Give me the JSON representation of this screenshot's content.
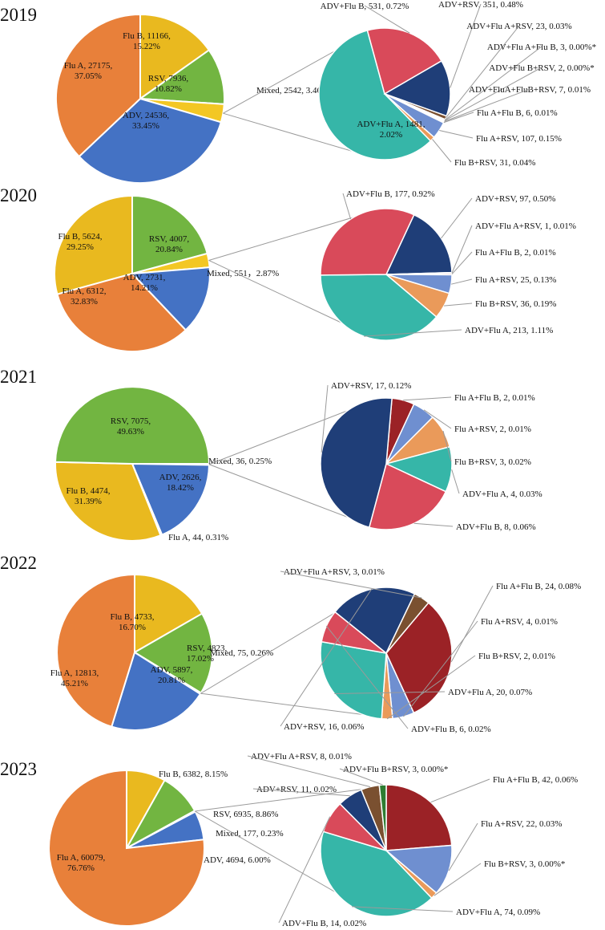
{
  "chart_data": [
    {
      "type": "pie",
      "year": "2019",
      "main": [
        {
          "name": "Flu B",
          "count": "11166",
          "pct": "15.22%",
          "value": 15.22,
          "color": "#e9b91f",
          "label": [
            "Flu B, 11166,",
            "15.22%"
          ]
        },
        {
          "name": "RSV",
          "count": "7936",
          "pct": "10.82%",
          "value": 10.82,
          "color": "#72b541",
          "label": [
            "RSV, 7936,",
            "10.82%"
          ]
        },
        {
          "name": "Mixed",
          "count": "2542",
          "pct": "3.46%",
          "value": 3.46,
          "color": "#f3c724",
          "label": [
            "Mixed, 2542, 3.46%"
          ]
        },
        {
          "name": "ADV",
          "count": "24536",
          "pct": "33.45%",
          "value": 33.45,
          "color": "#4472c4",
          "label": [
            "ADV, 24536,",
            "33.45%"
          ]
        },
        {
          "name": "Flu A",
          "count": "27175",
          "pct": "37.05%",
          "value": 37.05,
          "color": "#e8803a",
          "label": [
            "Flu A, 27175,",
            "37.05%"
          ]
        }
      ],
      "mixed": [
        {
          "name": "ADV+Flu A",
          "value": 1481,
          "color": "#36b6a8",
          "label": [
            "ADV+Flu A, 1481,",
            "2.02%"
          ]
        },
        {
          "name": "ADV+Flu B",
          "value": 531,
          "color": "#d94a5a",
          "label": [
            "ADV+Flu B, 531, 0.72%"
          ]
        },
        {
          "name": "ADV+RSV",
          "value": 351,
          "color": "#1f3e78",
          "label": [
            "ADV+RSV, 351, 0.48%"
          ]
        },
        {
          "name": "ADV+Flu A+RSV",
          "value": 23,
          "color": "#7a5030",
          "label": [
            "ADV+Flu A+RSV, 23, 0.03%"
          ]
        },
        {
          "name": "ADV+Flu A+Flu B",
          "value": 3,
          "color": "#2e7d32",
          "label": [
            "ADV+Flu A+Flu B, 3, 0.00%*"
          ]
        },
        {
          "name": "ADV+Flu B+RSV",
          "value": 2,
          "color": "#a05050",
          "label": [
            "ADV+Flu B+RSV, 2, 0.00%*"
          ]
        },
        {
          "name": "ADV+FluA+FluB+RSV",
          "value": 7,
          "color": "#506080",
          "label": [
            "ADV+FluA+FluB+RSV, 7, 0.01%"
          ]
        },
        {
          "name": "Flu A+Flu B",
          "value": 6,
          "color": "#9b2226",
          "label": [
            "Flu A+Flu B, 6, 0.01%"
          ]
        },
        {
          "name": "Flu A+RSV",
          "value": 107,
          "color": "#6f8fd0",
          "label": [
            "Flu A+RSV, 107, 0.15%"
          ]
        },
        {
          "name": "Flu B+RSV",
          "value": 31,
          "color": "#ea9a5a",
          "label": [
            "Flu B+RSV, 31, 0.04%"
          ]
        }
      ]
    },
    {
      "type": "pie",
      "year": "2020",
      "main": [
        {
          "name": "RSV",
          "count": "4007",
          "pct": "20.84%",
          "value": 20.84,
          "color": "#72b541",
          "label": [
            "RSV, 4007,",
            "20.84%"
          ]
        },
        {
          "name": "Mixed",
          "count": "551",
          "pct": "2.87%",
          "value": 2.87,
          "color": "#f3c724",
          "label": [
            "Mixed, 551，2.87%"
          ]
        },
        {
          "name": "ADV",
          "count": "2731",
          "pct": "14.21%",
          "value": 14.21,
          "color": "#4472c4",
          "label": [
            "ADV, 2731,",
            "14.21%"
          ]
        },
        {
          "name": "Flu A",
          "count": "6312",
          "pct": "32.83%",
          "value": 32.83,
          "color": "#e8803a",
          "label": [
            "Flu A, 6312,",
            "32.83%"
          ]
        },
        {
          "name": "Flu B",
          "count": "5624",
          "pct": "29.25%",
          "value": 29.25,
          "color": "#e9b91f",
          "label": [
            "Flu B, 5624,",
            "29.25%"
          ]
        }
      ],
      "mixed": [
        {
          "name": "ADV+RSV",
          "value": 97,
          "color": "#1f3e78",
          "label": [
            "ADV+RSV, 97, 0.50%"
          ]
        },
        {
          "name": "ADV+Flu A+RSV",
          "value": 1,
          "color": "#7a5030",
          "label": [
            "ADV+Flu A+RSV, 1, 0.01%"
          ]
        },
        {
          "name": "Flu A+Flu B",
          "value": 2,
          "color": "#9b2226",
          "label": [
            "Flu A+Flu B, 2, 0.01%"
          ]
        },
        {
          "name": "Flu A+RSV",
          "value": 25,
          "color": "#6f8fd0",
          "label": [
            "Flu A+RSV, 25, 0.13%"
          ]
        },
        {
          "name": "Flu B+RSV",
          "value": 36,
          "color": "#ea9a5a",
          "label": [
            "Flu B+RSV, 36, 0.19%"
          ]
        },
        {
          "name": "ADV+Flu A",
          "value": 213,
          "color": "#36b6a8",
          "label": [
            "ADV+Flu A, 213, 1.11%"
          ]
        },
        {
          "name": "ADV+Flu B",
          "value": 177,
          "color": "#d94a5a",
          "label": [
            "ADV+Flu B, 177, 0.92%"
          ]
        }
      ]
    },
    {
      "type": "pie",
      "year": "2021",
      "main": [
        {
          "name": "Mixed",
          "count": "36",
          "pct": "0.25%",
          "value": 0.25,
          "color": "#f3c724",
          "label": [
            "Mixed, 36, 0.25%"
          ]
        },
        {
          "name": "ADV",
          "count": "2626",
          "pct": "18.42%",
          "value": 18.42,
          "color": "#4472c4",
          "label": [
            "ADV, 2626,",
            "18.42%"
          ]
        },
        {
          "name": "Flu A",
          "count": "44",
          "pct": "0.31%",
          "value": 0.31,
          "color": "#e8803a",
          "label": [
            "Flu A, 44, 0.31%"
          ]
        },
        {
          "name": "Flu B",
          "count": "4474",
          "pct": "31.39%",
          "value": 31.39,
          "color": "#e9b91f",
          "label": [
            "Flu B, 4474,",
            "31.39%"
          ]
        },
        {
          "name": "RSV",
          "count": "7075",
          "pct": "49.63%",
          "value": 49.63,
          "color": "#72b541",
          "label": [
            "RSV, 7075,",
            "49.63%"
          ]
        }
      ],
      "mixed": [
        {
          "name": "Flu A+Flu B",
          "value": 2,
          "color": "#9b2226",
          "label": [
            "Flu A+Flu B, 2, 0.01%"
          ]
        },
        {
          "name": "Flu A+RSV",
          "value": 2,
          "color": "#6f8fd0",
          "label": [
            "Flu A+RSV, 2, 0.01%"
          ]
        },
        {
          "name": "Flu B+RSV",
          "value": 3,
          "color": "#ea9a5a",
          "label": [
            "Flu B+RSV, 3, 0.02%"
          ]
        },
        {
          "name": "ADV+Flu A",
          "value": 4,
          "color": "#36b6a8",
          "label": [
            "ADV+Flu A, 4, 0.03%"
          ]
        },
        {
          "name": "ADV+Flu B",
          "value": 8,
          "color": "#d94a5a",
          "label": [
            "ADV+Flu B, 8, 0.06%"
          ]
        },
        {
          "name": "ADV+RSV",
          "value": 17,
          "color": "#1f3e78",
          "label": [
            "ADV+RSV, 17, 0.12%"
          ]
        }
      ]
    },
    {
      "type": "pie",
      "year": "2022",
      "main": [
        {
          "name": "Flu B",
          "count": "4733",
          "pct": "16.70%",
          "value": 16.7,
          "color": "#e9b91f",
          "label": [
            "Flu B, 4733,",
            "16.70%"
          ]
        },
        {
          "name": "RSV",
          "count": "4823",
          "pct": "17.02%",
          "value": 17.02,
          "color": "#72b541",
          "label": [
            "RSV, 4823,",
            "17.02%"
          ]
        },
        {
          "name": "Mixed",
          "count": "75",
          "pct": "0.26%",
          "value": 0.26,
          "color": "#f3c724",
          "label": [
            "Mixed, 75, 0.26%"
          ]
        },
        {
          "name": "ADV",
          "count": "5897",
          "pct": "20.81%",
          "value": 20.81,
          "color": "#4472c4",
          "label": [
            "ADV, 5897,",
            "20.81%"
          ]
        },
        {
          "name": "Flu A",
          "count": "12813",
          "pct": "45.21%",
          "value": 45.21,
          "color": "#e8803a",
          "label": [
            "Flu A, 12813,",
            "45.21%"
          ]
        }
      ],
      "mixed": [
        {
          "name": "Flu A+Flu B",
          "value": 24,
          "color": "#9b2226",
          "label": [
            "Flu A+Flu B, 24, 0.08%"
          ]
        },
        {
          "name": "Flu A+RSV",
          "value": 4,
          "color": "#6f8fd0",
          "label": [
            "Flu A+RSV, 4, 0.01%"
          ]
        },
        {
          "name": "Flu B+RSV",
          "value": 2,
          "color": "#ea9a5a",
          "label": [
            "Flu B+RSV, 2, 0.01%"
          ]
        },
        {
          "name": "ADV+Flu A",
          "value": 20,
          "color": "#36b6a8",
          "label": [
            "ADV+Flu A, 20, 0.07%"
          ]
        },
        {
          "name": "ADV+Flu B",
          "value": 6,
          "color": "#d94a5a",
          "label": [
            "ADV+Flu B, 6, 0.02%"
          ]
        },
        {
          "name": "ADV+RSV",
          "value": 16,
          "color": "#1f3e78",
          "label": [
            "ADV+RSV, 16, 0.06%"
          ]
        },
        {
          "name": "ADV+Flu A+RSV",
          "value": 3,
          "color": "#7a5030",
          "label": [
            "ADV+Flu A+RSV, 3, 0.01%"
          ]
        }
      ]
    },
    {
      "type": "pie",
      "year": "2023",
      "main": [
        {
          "name": "Flu B",
          "count": "6382",
          "pct": "8.15%",
          "value": 8.15,
          "color": "#e9b91f",
          "label": [
            "Flu B, 6382, 8.15%"
          ]
        },
        {
          "name": "RSV",
          "count": "6935",
          "pct": "8.86%",
          "value": 8.86,
          "color": "#72b541",
          "label": [
            "RSV, 6935, 8.86%"
          ]
        },
        {
          "name": "Mixed",
          "count": "177",
          "pct": "0.23%",
          "value": 0.23,
          "color": "#f3c724",
          "label": [
            "Mixed, 177, 0.23%"
          ]
        },
        {
          "name": "ADV",
          "count": "4694",
          "pct": "6.00%",
          "value": 6.0,
          "color": "#4472c4",
          "label": [
            "ADV, 4694, 6.00%"
          ]
        },
        {
          "name": "Flu A",
          "count": "60079",
          "pct": "76.76%",
          "value": 76.76,
          "color": "#e8803a",
          "label": [
            "Flu A, 60079,",
            "76.76%"
          ]
        }
      ],
      "mixed": [
        {
          "name": "Flu A+Flu B",
          "value": 42,
          "color": "#9b2226",
          "label": [
            "Flu A+Flu B, 42, 0.06%"
          ]
        },
        {
          "name": "Flu A+RSV",
          "value": 22,
          "color": "#6f8fd0",
          "label": [
            "Flu A+RSV, 22, 0.03%"
          ]
        },
        {
          "name": "Flu B+RSV",
          "value": 3,
          "color": "#ea9a5a",
          "label": [
            "Flu B+RSV, 3, 0.00%*"
          ]
        },
        {
          "name": "ADV+Flu A",
          "value": 74,
          "color": "#36b6a8",
          "label": [
            "ADV+Flu A, 74, 0.09%"
          ]
        },
        {
          "name": "ADV+Flu B",
          "value": 14,
          "color": "#d94a5a",
          "label": [
            "ADV+Flu B, 14, 0.02%"
          ]
        },
        {
          "name": "ADV+RSV",
          "value": 11,
          "color": "#1f3e78",
          "label": [
            "ADV+RSV, 11, 0.02%"
          ]
        },
        {
          "name": "ADV+Flu A+RSV",
          "value": 8,
          "color": "#7a5030",
          "label": [
            "ADV+Flu A+RSV, 8, 0.01%"
          ]
        },
        {
          "name": "ADV+Flu B+RSV",
          "value": 3,
          "color": "#2e7d32",
          "label": [
            "ADV+Flu B+RSV, 3, 0.00%*"
          ]
        }
      ]
    }
  ]
}
